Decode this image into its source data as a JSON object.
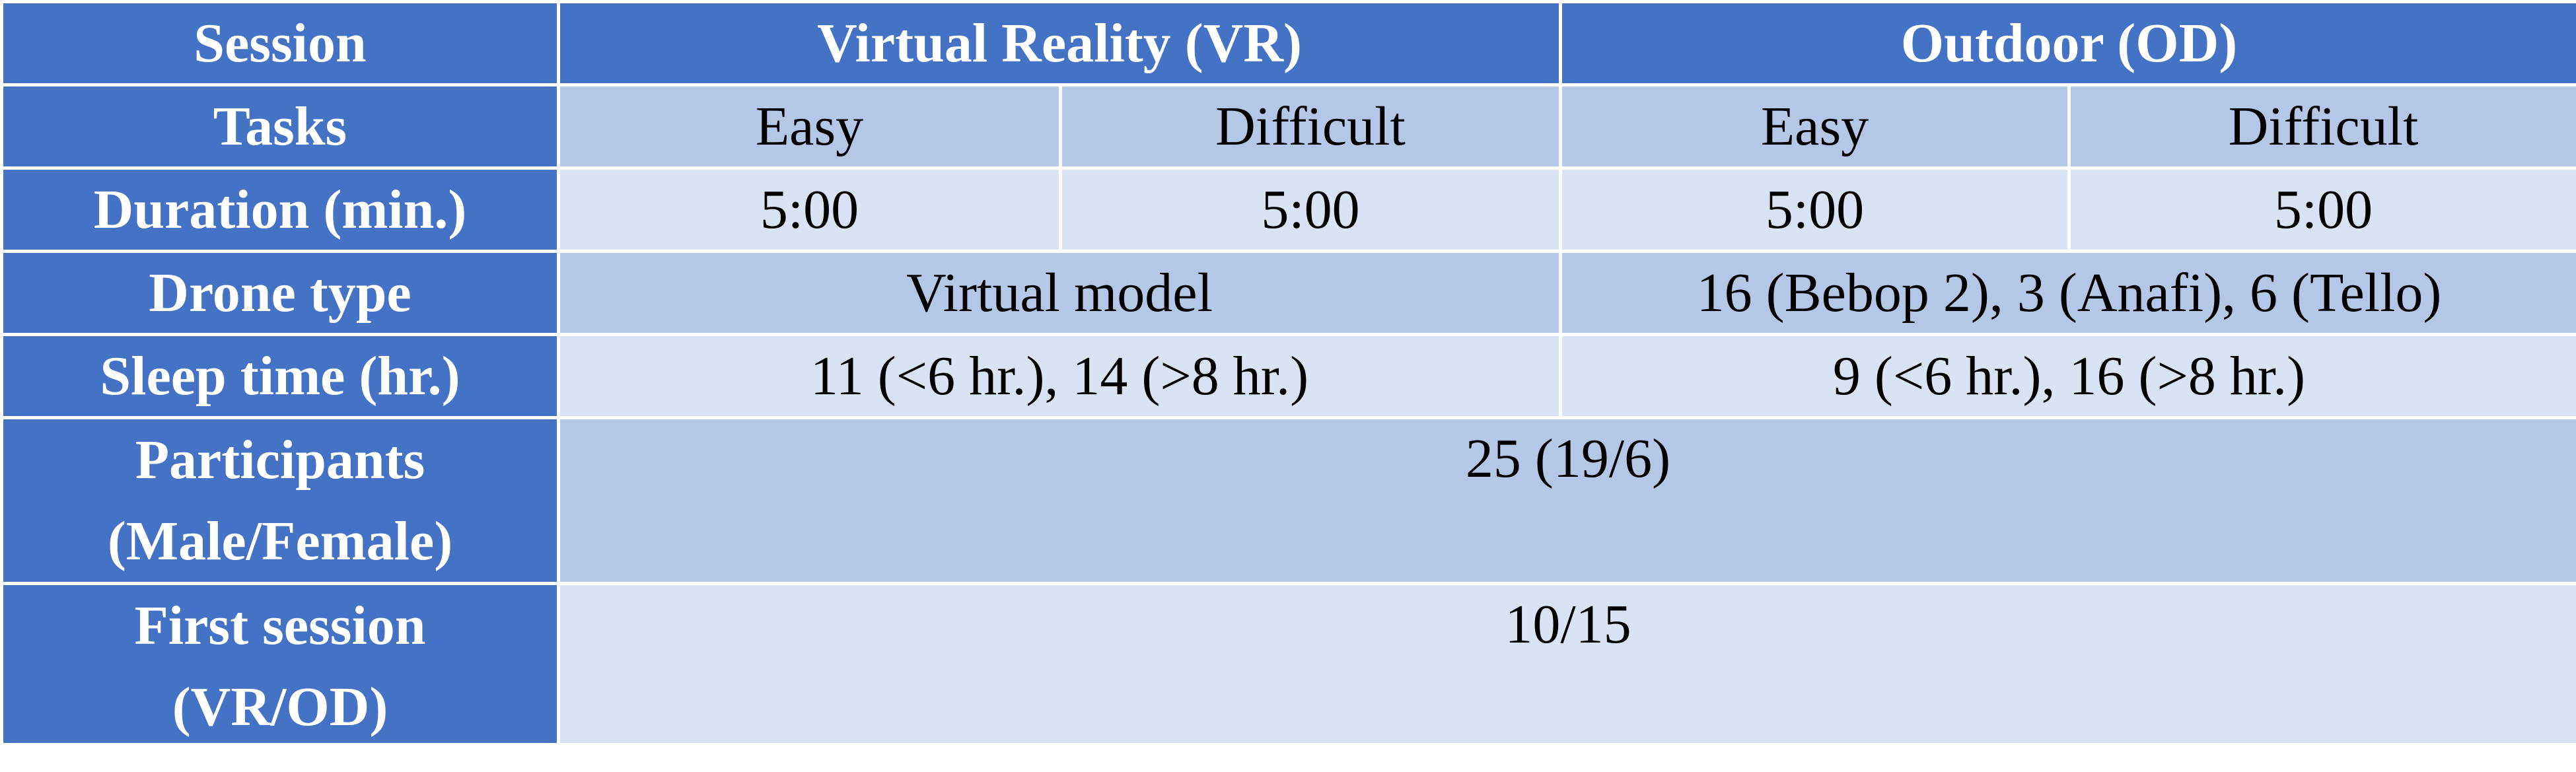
{
  "table": {
    "header": {
      "session_label": "Session",
      "vr_label": "Virtual Reality (VR)",
      "od_label": "Outdoor (OD)"
    },
    "rows": {
      "tasks": {
        "label": "Tasks",
        "vr_easy": "Easy",
        "vr_difficult": "Difficult",
        "od_easy": "Easy",
        "od_difficult": "Difficult"
      },
      "duration": {
        "label": "Duration (min.)",
        "vr_easy": "5:00",
        "vr_difficult": "5:00",
        "od_easy": "5:00",
        "od_difficult": "5:00"
      },
      "drone_type": {
        "label": "Drone type",
        "vr": "Virtual model",
        "od": "16 (Bebop 2), 3 (Anafi), 6 (Tello)"
      },
      "sleep_time": {
        "label": "Sleep time (hr.)",
        "vr": "11 (<6 hr.), 14 (>8 hr.)",
        "od": "9 (<6 hr.), 16 (>8 hr.)"
      },
      "participants": {
        "label_line1": "Participants",
        "label_line2": "(Male/Female)",
        "value": "25 (19/6)"
      },
      "first_session": {
        "label_line1": "First session",
        "label_line2": "(VR/OD)",
        "value": "10/15"
      }
    }
  },
  "colors": {
    "header_blue": "#4472C4",
    "band_dark": "#B4C7E7",
    "band_light": "#DAE3F3",
    "grid_line": "#FFFFFF"
  }
}
